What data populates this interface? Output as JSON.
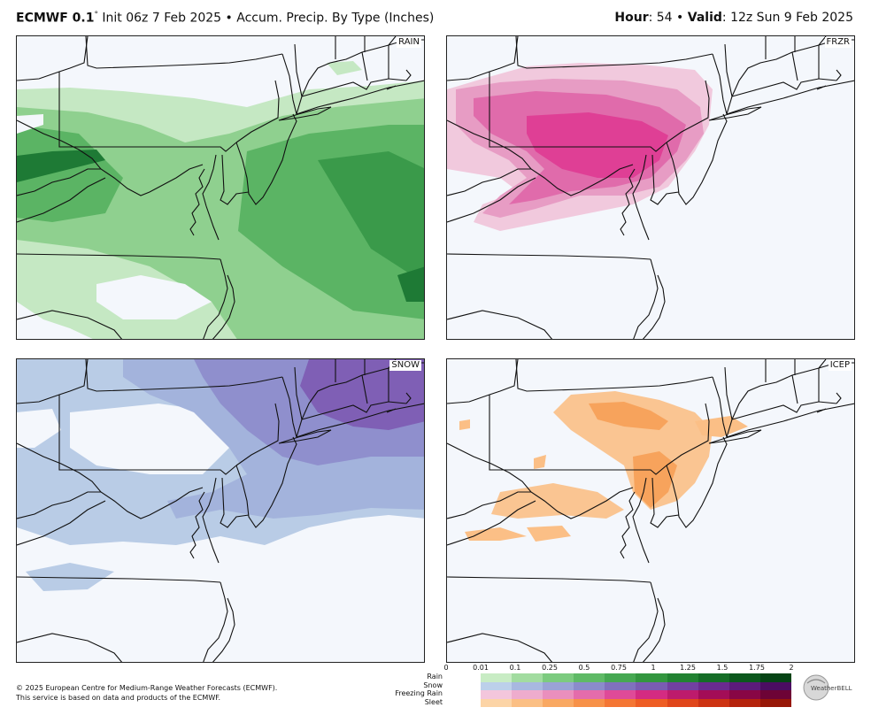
{
  "header": {
    "model": "ECMWF 0.1",
    "degree": "°",
    "init": " Init 06z 7 Feb 2025",
    "bullet1": " • ",
    "product": "Accum. Precip. By Type (Inches)",
    "hour_label": "Hour",
    "hour_value": ": 54",
    "bullet2": " • ",
    "valid_label": "Valid",
    "valid_value": ": 12z Sun 9 Feb 2025"
  },
  "panels": {
    "rain": {
      "label": "RAIN",
      "colors": [
        "#c5e8c3",
        "#8fd08f",
        "#5bb464",
        "#3a9a4a",
        "#1e7a35"
      ]
    },
    "frzr": {
      "label": "FRZR",
      "colors": [
        "#f1c9dd",
        "#e79cc4",
        "#e06bab",
        "#df3f95"
      ]
    },
    "snow": {
      "label": "SNOW",
      "colors": [
        "#b9cce6",
        "#a3b3dc",
        "#8f8fcd",
        "#7f5fb5"
      ]
    },
    "icep": {
      "label": "ICEP",
      "colors": [
        "#fbbf86",
        "#f7a35c"
      ]
    }
  },
  "credits": {
    "line1": "© 2025 European Centre for Medium-Range Weather Forecasts (ECMWF).",
    "line2": "This service is based on data and products of the ECMWF."
  },
  "legend": {
    "ticks": [
      "0",
      "0.01",
      "0.1",
      "0.25",
      "0.5",
      "0.75",
      "1",
      "1.25",
      "1.5",
      "1.75",
      "2"
    ],
    "rows": [
      "Rain",
      "Snow",
      "Freezing Rain",
      "Sleet"
    ],
    "colors": {
      "rain": [
        "#c8ecc4",
        "#a2dca0",
        "#7ccb7f",
        "#5fba66",
        "#46a852",
        "#33963f",
        "#228232",
        "#156d27",
        "#0c581d",
        "#064415"
      ],
      "snow": [
        "#bcd0ea",
        "#a8b8e0",
        "#9aa2d6",
        "#8b8bcb",
        "#8071bd",
        "#7a5cb2",
        "#7240a1",
        "#6a2b90",
        "#5c1b7b",
        "#4b0d62"
      ],
      "frzr": [
        "#f3c6dc",
        "#eeaccd",
        "#ea8fbd",
        "#e46cab",
        "#df4a98",
        "#d42b82",
        "#bd1b6c",
        "#a30d57",
        "#880645",
        "#6d0336"
      ],
      "sleet": [
        "#fcd4a6",
        "#fbbf84",
        "#f9a862",
        "#f79148",
        "#f47634",
        "#ee5d24",
        "#e0461a",
        "#cd3312",
        "#b5230c",
        "#971707"
      ]
    }
  },
  "logo": {
    "text": "WeatherBELL"
  }
}
